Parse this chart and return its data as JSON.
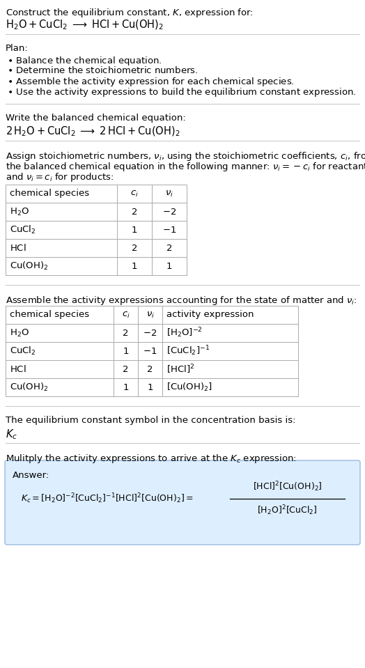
{
  "bg_color": "#ffffff",
  "table_border_color": "#aaaaaa",
  "answer_box_color": "#ddeeff",
  "answer_box_border": "#99bbdd",
  "font_size": 9.5,
  "sections": {
    "s1_line1": "Construct the equilibrium constant, $K$, expression for:",
    "s1_line2": "$\\mathrm{H_2O + CuCl_2 \\;\\longrightarrow\\; HCl + Cu(OH)_2}$",
    "s2_header": "Plan:",
    "s2_items": [
      "$\\bullet$ Balance the chemical equation.",
      "$\\bullet$ Determine the stoichiometric numbers.",
      "$\\bullet$ Assemble the activity expression for each chemical species.",
      "$\\bullet$ Use the activity expressions to build the equilibrium constant expression."
    ],
    "s3_header": "Write the balanced chemical equation:",
    "s3_eq": "$\\mathrm{2\\,H_2O + CuCl_2 \\;\\longrightarrow\\; 2\\,HCl + Cu(OH)_2}$",
    "s4_text": [
      "Assign stoichiometric numbers, $\\nu_i$, using the stoichiometric coefficients, $c_i$, from",
      "the balanced chemical equation in the following manner: $\\nu_i = -c_i$ for reactants",
      "and $\\nu_i = c_i$ for products:"
    ],
    "t1_headers": [
      "chemical species",
      "$c_i$",
      "$\\nu_i$"
    ],
    "t1_rows": [
      [
        "$\\mathrm{H_2O}$",
        "2",
        "$-2$"
      ],
      [
        "$\\mathrm{CuCl_2}$",
        "1",
        "$-1$"
      ],
      [
        "$\\mathrm{HCl}$",
        "2",
        "2"
      ],
      [
        "$\\mathrm{Cu(OH)_2}$",
        "1",
        "1"
      ]
    ],
    "s5_text": "Assemble the activity expressions accounting for the state of matter and $\\nu_i$:",
    "t2_headers": [
      "chemical species",
      "$c_i$",
      "$\\nu_i$",
      "activity expression"
    ],
    "t2_rows": [
      [
        "$\\mathrm{H_2O}$",
        "2",
        "$-2$",
        "$[\\mathrm{H_2O}]^{-2}$"
      ],
      [
        "$\\mathrm{CuCl_2}$",
        "1",
        "$-1$",
        "$[\\mathrm{CuCl_2}]^{-1}$"
      ],
      [
        "$\\mathrm{HCl}$",
        "2",
        "2",
        "$[\\mathrm{HCl}]^{2}$"
      ],
      [
        "$\\mathrm{Cu(OH)_2}$",
        "1",
        "1",
        "$[\\mathrm{Cu(OH)_2}]$"
      ]
    ],
    "s6_text": "The equilibrium constant symbol in the concentration basis is:",
    "s6_symbol": "$K_c$",
    "s7_text": "Mulitply the activity expressions to arrive at the $K_c$ expression:",
    "answer_label": "Answer:",
    "eq_left": "$K_c = [\\mathrm{H_2O}]^{-2} [\\mathrm{CuCl_2}]^{-1} [\\mathrm{HCl}]^{2} [\\mathrm{Cu(OH)_2}] = $",
    "eq_num": "$[\\mathrm{HCl}]^{2} [\\mathrm{Cu(OH)_2}]$",
    "eq_den": "$[\\mathrm{H_2O}]^{2} [\\mathrm{CuCl_2}]$"
  }
}
